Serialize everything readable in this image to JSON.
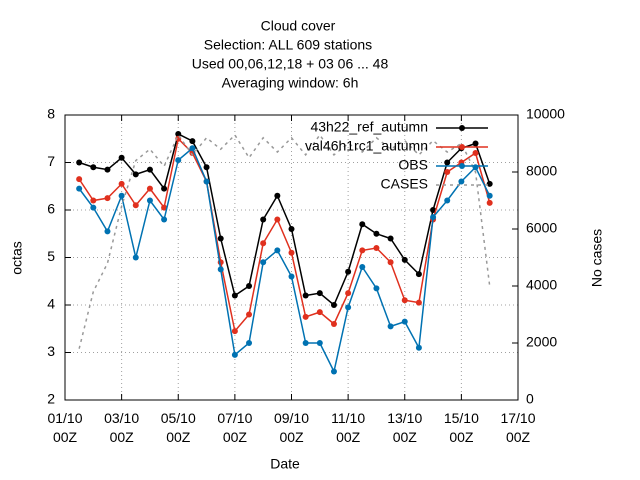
{
  "chart_data": {
    "type": "line",
    "title": "Cloud cover",
    "subtitle": [
      "Selection: ALL    609 stations",
      "Used  00,06,12,18  + 03 06 ... 48",
      "Averaging window:  6h"
    ],
    "x_label": "Date",
    "y_label": "octas",
    "y2_label": "No cases",
    "x": [
      0.5,
      1.0,
      1.5,
      2.0,
      2.5,
      3.0,
      3.5,
      4.0,
      4.5,
      5.0,
      5.5,
      6.0,
      6.5,
      7.0,
      7.5,
      8.0,
      8.5,
      9.0,
      9.5,
      10.0,
      10.5,
      11.0,
      11.5,
      12.0,
      12.5,
      13.0,
      13.5,
      14.0,
      14.5,
      15.0
    ],
    "series": [
      {
        "name": "43h22_ref_autumn",
        "color": "#000000",
        "values": [
          7.0,
          6.9,
          6.85,
          7.1,
          6.75,
          6.85,
          6.45,
          7.6,
          7.45,
          6.9,
          5.4,
          4.2,
          4.4,
          5.8,
          6.3,
          5.6,
          4.2,
          4.25,
          4.0,
          4.7,
          5.7,
          5.5,
          5.4,
          4.95,
          4.65,
          6.0,
          7.0,
          7.3,
          7.4,
          6.55
        ]
      },
      {
        "name": "val46h1rc1_autumn",
        "color": "#e0301e",
        "values": [
          6.65,
          6.2,
          6.25,
          6.55,
          6.1,
          6.45,
          6.05,
          7.5,
          7.2,
          6.6,
          4.9,
          3.45,
          3.8,
          5.3,
          5.8,
          5.1,
          3.75,
          3.85,
          3.6,
          4.25,
          5.15,
          5.2,
          4.9,
          4.1,
          4.05,
          5.8,
          6.8,
          7.0,
          7.2,
          6.15
        ]
      },
      {
        "name": "OBS",
        "color": "#0072b2",
        "values": [
          6.45,
          6.05,
          5.55,
          6.3,
          5.0,
          6.2,
          5.8,
          7.05,
          7.3,
          6.6,
          4.75,
          2.95,
          3.2,
          4.9,
          5.15,
          4.6,
          3.2,
          3.2,
          2.6,
          3.95,
          4.8,
          4.35,
          3.55,
          3.65,
          3.1,
          5.85,
          6.2,
          6.6,
          6.9,
          6.3
        ]
      },
      {
        "name": "CASES",
        "color": "#999999",
        "axis": "y2",
        "dashed": true,
        "markers": false,
        "values": [
          1800,
          3800,
          4800,
          6800,
          8400,
          8800,
          8200,
          9300,
          8600,
          9200,
          8800,
          9300,
          8500,
          9200,
          8700,
          9200,
          8600,
          9300,
          8600,
          9000,
          8700,
          9200,
          8800,
          9100,
          8600,
          9100,
          8700,
          9000,
          8000,
          4000
        ]
      }
    ],
    "xlim": [
      0,
      16
    ],
    "xticks": [
      {
        "value": 0,
        "label": "01/10\n00Z"
      },
      {
        "value": 2,
        "label": "03/10\n00Z"
      },
      {
        "value": 4,
        "label": "05/10\n00Z"
      },
      {
        "value": 6,
        "label": "07/10\n00Z"
      },
      {
        "value": 8,
        "label": "09/10\n00Z"
      },
      {
        "value": 10,
        "label": "11/10\n00Z"
      },
      {
        "value": 12,
        "label": "13/10\n00Z"
      },
      {
        "value": 14,
        "label": "15/10\n00Z"
      },
      {
        "value": 16,
        "label": "17/10\n00Z"
      }
    ],
    "ylim": [
      2,
      8
    ],
    "yticks": [
      2,
      3,
      4,
      5,
      6,
      7,
      8
    ],
    "y2lim": [
      0,
      10000
    ],
    "y2ticks": [
      0,
      2000,
      4000,
      6000,
      8000,
      10000
    ],
    "grid": true,
    "legend": "top-right"
  }
}
